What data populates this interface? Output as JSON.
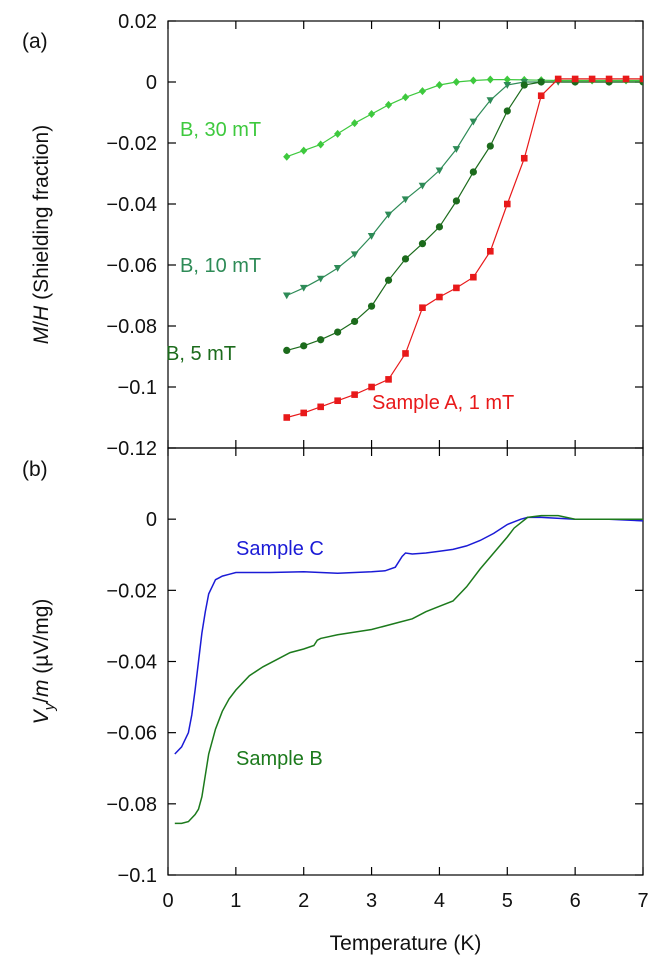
{
  "figure": {
    "xlabel": "Temperature (K)"
  },
  "chart_data": [
    {
      "type": "line",
      "panel_label": "(a)",
      "xlabel": "Temperature (K)",
      "ylabel": "M/H (Shielding fraction)",
      "xlim": [
        0,
        7
      ],
      "ylim": [
        -0.12,
        0.02
      ],
      "x_ticks": [
        0,
        1,
        2,
        3,
        4,
        5,
        6,
        7
      ],
      "y_ticks": [
        0.02,
        0,
        -0.02,
        -0.04,
        -0.06,
        -0.08,
        -0.1,
        -0.12
      ],
      "y_tick_labels": [
        "0.02",
        "0",
        "−0.02",
        "−0.04",
        "−0.06",
        "−0.08",
        "−0.1",
        "−0.12"
      ],
      "grid": false,
      "series": [
        {
          "name": "B, 30 mT",
          "color": "#3ec93e",
          "marker": "diamond",
          "x": [
            1.75,
            2.0,
            2.25,
            2.5,
            2.75,
            3.0,
            3.25,
            3.5,
            3.75,
            4.0,
            4.25,
            4.5,
            4.75,
            5.0,
            5.25,
            5.5,
            5.75,
            6.0,
            6.25,
            6.5,
            6.75,
            7.0
          ],
          "y": [
            -0.0245,
            -0.0225,
            -0.0205,
            -0.017,
            -0.0135,
            -0.0105,
            -0.0075,
            -0.005,
            -0.003,
            -0.001,
            0.0,
            0.0005,
            0.0008,
            0.0008,
            0.0007,
            0.0006,
            0.0005,
            0.0005,
            0.0005,
            0.0005,
            0.0005,
            0.0005
          ]
        },
        {
          "name": "B, 10 mT",
          "color": "#2e8b57",
          "marker": "triangle-down",
          "x": [
            1.75,
            2.0,
            2.25,
            2.5,
            2.75,
            3.0,
            3.25,
            3.5,
            3.75,
            4.0,
            4.25,
            4.5,
            4.75,
            5.0,
            5.25,
            5.5,
            5.75,
            6.0,
            6.5,
            7.0
          ],
          "y": [
            -0.07,
            -0.0675,
            -0.0645,
            -0.061,
            -0.0565,
            -0.0505,
            -0.0435,
            -0.0385,
            -0.034,
            -0.029,
            -0.022,
            -0.013,
            -0.006,
            -0.001,
            0.0,
            0.0,
            0.0,
            0.0,
            0.0,
            0.0
          ]
        },
        {
          "name": "B, 5 mT",
          "color": "#1c6b1c",
          "marker": "circle",
          "x": [
            1.75,
            2.0,
            2.25,
            2.5,
            2.75,
            3.0,
            3.25,
            3.5,
            3.75,
            4.0,
            4.25,
            4.5,
            4.75,
            5.0,
            5.25,
            5.5,
            6.0,
            6.5,
            7.0
          ],
          "y": [
            -0.088,
            -0.0865,
            -0.0845,
            -0.082,
            -0.0785,
            -0.0735,
            -0.065,
            -0.058,
            -0.053,
            -0.0475,
            -0.039,
            -0.0295,
            -0.021,
            -0.0095,
            -0.001,
            0.0,
            0.0,
            0.0,
            0.0
          ]
        },
        {
          "name": "Sample A, 1 mT",
          "color": "#e8191a",
          "marker": "square",
          "x": [
            1.75,
            2.0,
            2.25,
            2.5,
            2.75,
            3.0,
            3.25,
            3.5,
            3.75,
            4.0,
            4.25,
            4.5,
            4.75,
            5.0,
            5.25,
            5.5,
            5.75,
            6.0,
            6.25,
            6.5,
            6.75,
            7.0
          ],
          "y": [
            -0.11,
            -0.1085,
            -0.1065,
            -0.1045,
            -0.1025,
            -0.1,
            -0.0975,
            -0.089,
            -0.074,
            -0.0705,
            -0.0675,
            -0.064,
            -0.0555,
            -0.04,
            -0.025,
            -0.0045,
            0.001,
            0.001,
            0.001,
            0.001,
            0.001,
            0.001
          ]
        }
      ]
    },
    {
      "type": "line",
      "panel_label": "(b)",
      "xlabel": "Temperature (K)",
      "ylabel": "Vy/m (µV/mg)",
      "xlim": [
        0,
        7
      ],
      "ylim": [
        -0.1,
        0.02
      ],
      "x_ticks": [
        0,
        1,
        2,
        3,
        4,
        5,
        6,
        7
      ],
      "x_tick_labels": [
        "0",
        "1",
        "2",
        "3",
        "4",
        "5",
        "6",
        "7"
      ],
      "y_ticks": [
        0,
        -0.02,
        -0.04,
        -0.06,
        -0.08,
        -0.1
      ],
      "y_tick_labels": [
        "0",
        "−0.02",
        "−0.04",
        "−0.06",
        "−0.08",
        "−0.1"
      ],
      "grid": false,
      "series": [
        {
          "name": "Sample C",
          "color": "#1b1bd6",
          "x": [
            0.1,
            0.2,
            0.3,
            0.35,
            0.4,
            0.45,
            0.5,
            0.55,
            0.6,
            0.65,
            0.7,
            0.75,
            0.8,
            0.9,
            1.0,
            1.2,
            1.5,
            2.0,
            2.5,
            3.0,
            3.2,
            3.35,
            3.45,
            3.5,
            3.6,
            3.8,
            4.0,
            4.2,
            4.4,
            4.6,
            4.8,
            5.0,
            5.2,
            5.3,
            5.5,
            6.0,
            6.5,
            7.0
          ],
          "y": [
            -0.066,
            -0.064,
            -0.06,
            -0.055,
            -0.048,
            -0.04,
            -0.032,
            -0.026,
            -0.021,
            -0.019,
            -0.017,
            -0.0165,
            -0.016,
            -0.0155,
            -0.015,
            -0.015,
            -0.015,
            -0.0148,
            -0.0152,
            -0.0148,
            -0.0145,
            -0.0135,
            -0.0105,
            -0.0095,
            -0.0098,
            -0.0095,
            -0.009,
            -0.0085,
            -0.0075,
            -0.006,
            -0.004,
            -0.0015,
            0.0,
            0.0005,
            0.0005,
            0.0,
            0.0,
            -0.0005
          ]
        },
        {
          "name": "Sample B",
          "color": "#1c7a1c",
          "x": [
            0.1,
            0.2,
            0.3,
            0.4,
            0.45,
            0.5,
            0.55,
            0.6,
            0.7,
            0.8,
            0.9,
            1.0,
            1.2,
            1.4,
            1.6,
            1.8,
            2.0,
            2.15,
            2.2,
            2.25,
            2.5,
            3.0,
            3.4,
            3.6,
            3.8,
            4.0,
            4.2,
            4.4,
            4.6,
            4.8,
            5.0,
            5.1,
            5.2,
            5.3,
            5.5,
            5.75,
            6.0,
            6.5,
            7.0
          ],
          "y": [
            -0.0855,
            -0.0855,
            -0.085,
            -0.083,
            -0.0815,
            -0.078,
            -0.072,
            -0.066,
            -0.059,
            -0.054,
            -0.0505,
            -0.048,
            -0.044,
            -0.0415,
            -0.0395,
            -0.0375,
            -0.0365,
            -0.0355,
            -0.034,
            -0.0335,
            -0.0325,
            -0.031,
            -0.029,
            -0.028,
            -0.026,
            -0.0245,
            -0.023,
            -0.019,
            -0.014,
            -0.0095,
            -0.005,
            -0.0025,
            -0.001,
            0.0005,
            0.001,
            0.001,
            0.0,
            0.0,
            0.0
          ]
        }
      ]
    }
  ]
}
